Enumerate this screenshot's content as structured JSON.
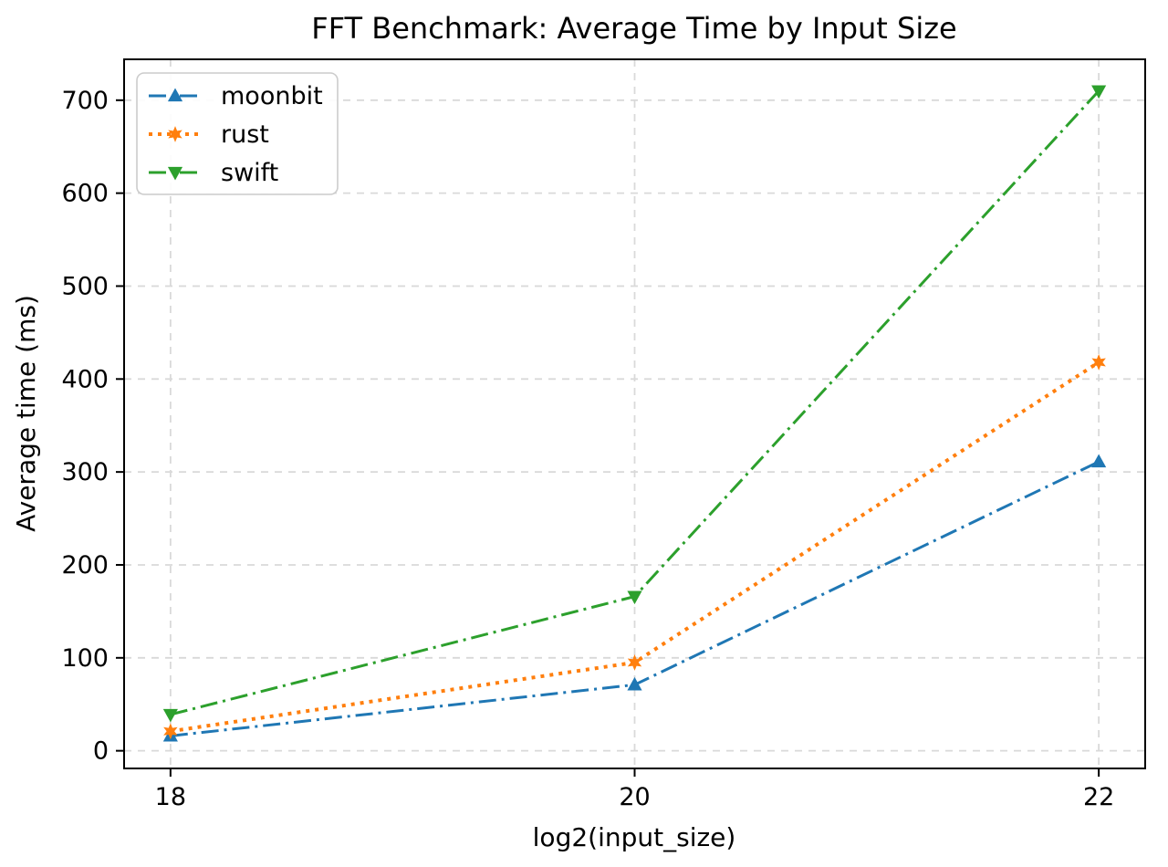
{
  "chart_data": {
    "type": "line",
    "title": "FFT Benchmark: Average Time by Input Size",
    "xlabel": "log2(input_size)",
    "ylabel": "Average time (ms)",
    "x": [
      18,
      20,
      22
    ],
    "series": [
      {
        "name": "moonbit",
        "values": [
          16,
          71,
          311
        ],
        "color": "#1f77b4",
        "linestyle": "dashdot",
        "marker": "triangle-up"
      },
      {
        "name": "rust",
        "values": [
          21,
          95,
          418
        ],
        "color": "#ff7f0e",
        "linestyle": "dotted",
        "marker": "star"
      },
      {
        "name": "swift",
        "values": [
          39,
          166,
          710
        ],
        "color": "#2ca02c",
        "linestyle": "dashdot",
        "marker": "triangle-down"
      }
    ],
    "xticks": [
      18,
      20,
      22
    ],
    "yticks": [
      0,
      100,
      200,
      300,
      400,
      500,
      600,
      700
    ],
    "xlim": [
      17.8,
      22.2
    ],
    "ylim": [
      -19,
      744
    ],
    "grid": true,
    "grid_color": "#d9d9d9",
    "legend_position": "upper-left",
    "legend_frame_color": "#cccccc",
    "spine_color": "#000000"
  }
}
